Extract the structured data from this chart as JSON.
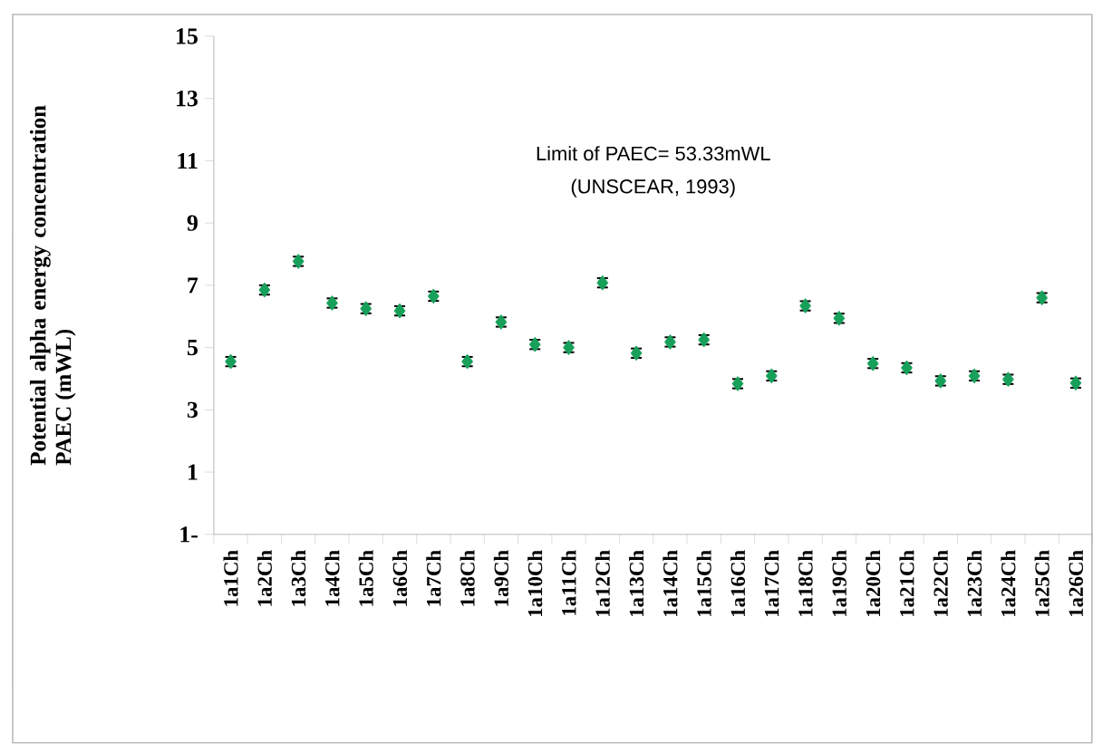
{
  "chart_data": {
    "type": "scatter",
    "ylabel": "Potential alpha energy concentration PAEC  (mWL)",
    "annotations": [
      "Limit of PAEC= 53.33mWL",
      "(UNSCEAR, 1993)"
    ],
    "categories": [
      "1a1Ch",
      "1a2Ch",
      "1a3Ch",
      "1a4Ch",
      "1a5Ch",
      "1a6Ch",
      "1a7Ch",
      "1a8Ch",
      "1a9Ch",
      "1a10Ch",
      "1a11Ch",
      "1a12Ch",
      "1a13Ch",
      "1a14Ch",
      "1a15Ch",
      "1a16Ch",
      "1a17Ch",
      "1a18Ch",
      "1a19Ch",
      "1a20Ch",
      "1a21Ch",
      "1a22Ch",
      "1a23Ch",
      "1a24Ch",
      "1a25Ch",
      "1a26Ch"
    ],
    "values": [
      4.55,
      6.85,
      7.77,
      6.43,
      6.25,
      6.18,
      6.65,
      4.55,
      5.82,
      5.1,
      5.0,
      7.08,
      4.82,
      5.18,
      5.25,
      3.84,
      4.09,
      6.34,
      5.94,
      4.49,
      4.35,
      3.93,
      4.09,
      3.98,
      6.6,
      3.86
    ],
    "errors": [
      0.15,
      0.15,
      0.15,
      0.15,
      0.15,
      0.15,
      0.15,
      0.15,
      0.15,
      0.15,
      0.15,
      0.15,
      0.15,
      0.15,
      0.15,
      0.15,
      0.15,
      0.15,
      0.15,
      0.15,
      0.15,
      0.15,
      0.15,
      0.15,
      0.15,
      0.15
    ],
    "color": "#17a05a",
    "marker": "diamond",
    "ylim": [
      -1,
      15
    ],
    "relative": false,
    "yticks": [
      {
        "value": -1,
        "label": "1-"
      },
      1,
      3,
      5,
      7,
      9,
      11,
      13,
      15
    ],
    "grid": false
  }
}
